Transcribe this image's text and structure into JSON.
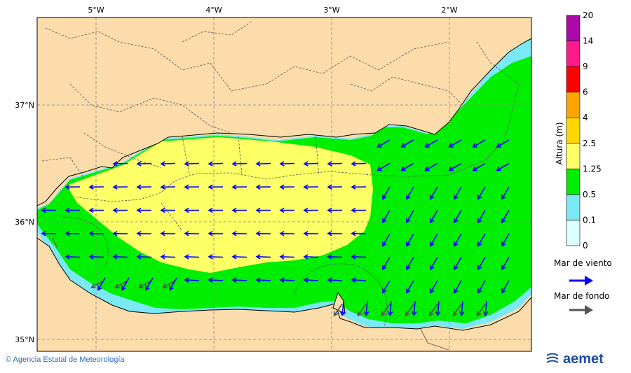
{
  "map": {
    "lon_ticks": [
      "5°W",
      "4°W",
      "3°W",
      "2°W"
    ],
    "lat_ticks": [
      "37°N",
      "36°N",
      "35°N"
    ]
  },
  "colorbar": {
    "title": "Altura (m)",
    "levels": [
      "0",
      "0.1",
      "0.5",
      "1.25",
      "2.5",
      "4",
      "6",
      "9",
      "14",
      "20"
    ],
    "colors": [
      "#dcffff",
      "#7ae8f5",
      "#00ee00",
      "#ffff66",
      "#ffd700",
      "#ffa500",
      "#ff0000",
      "#ff1a8c",
      "#aa0aa8"
    ]
  },
  "legend": {
    "wind_sea": "Mar de viento",
    "swell": "Mar de fondo",
    "wind_sea_color": "#0000ff",
    "swell_color": "#555555"
  },
  "footer": {
    "copyright": "© Agencia Estatal de Meteorología",
    "logo": "aemet"
  }
}
